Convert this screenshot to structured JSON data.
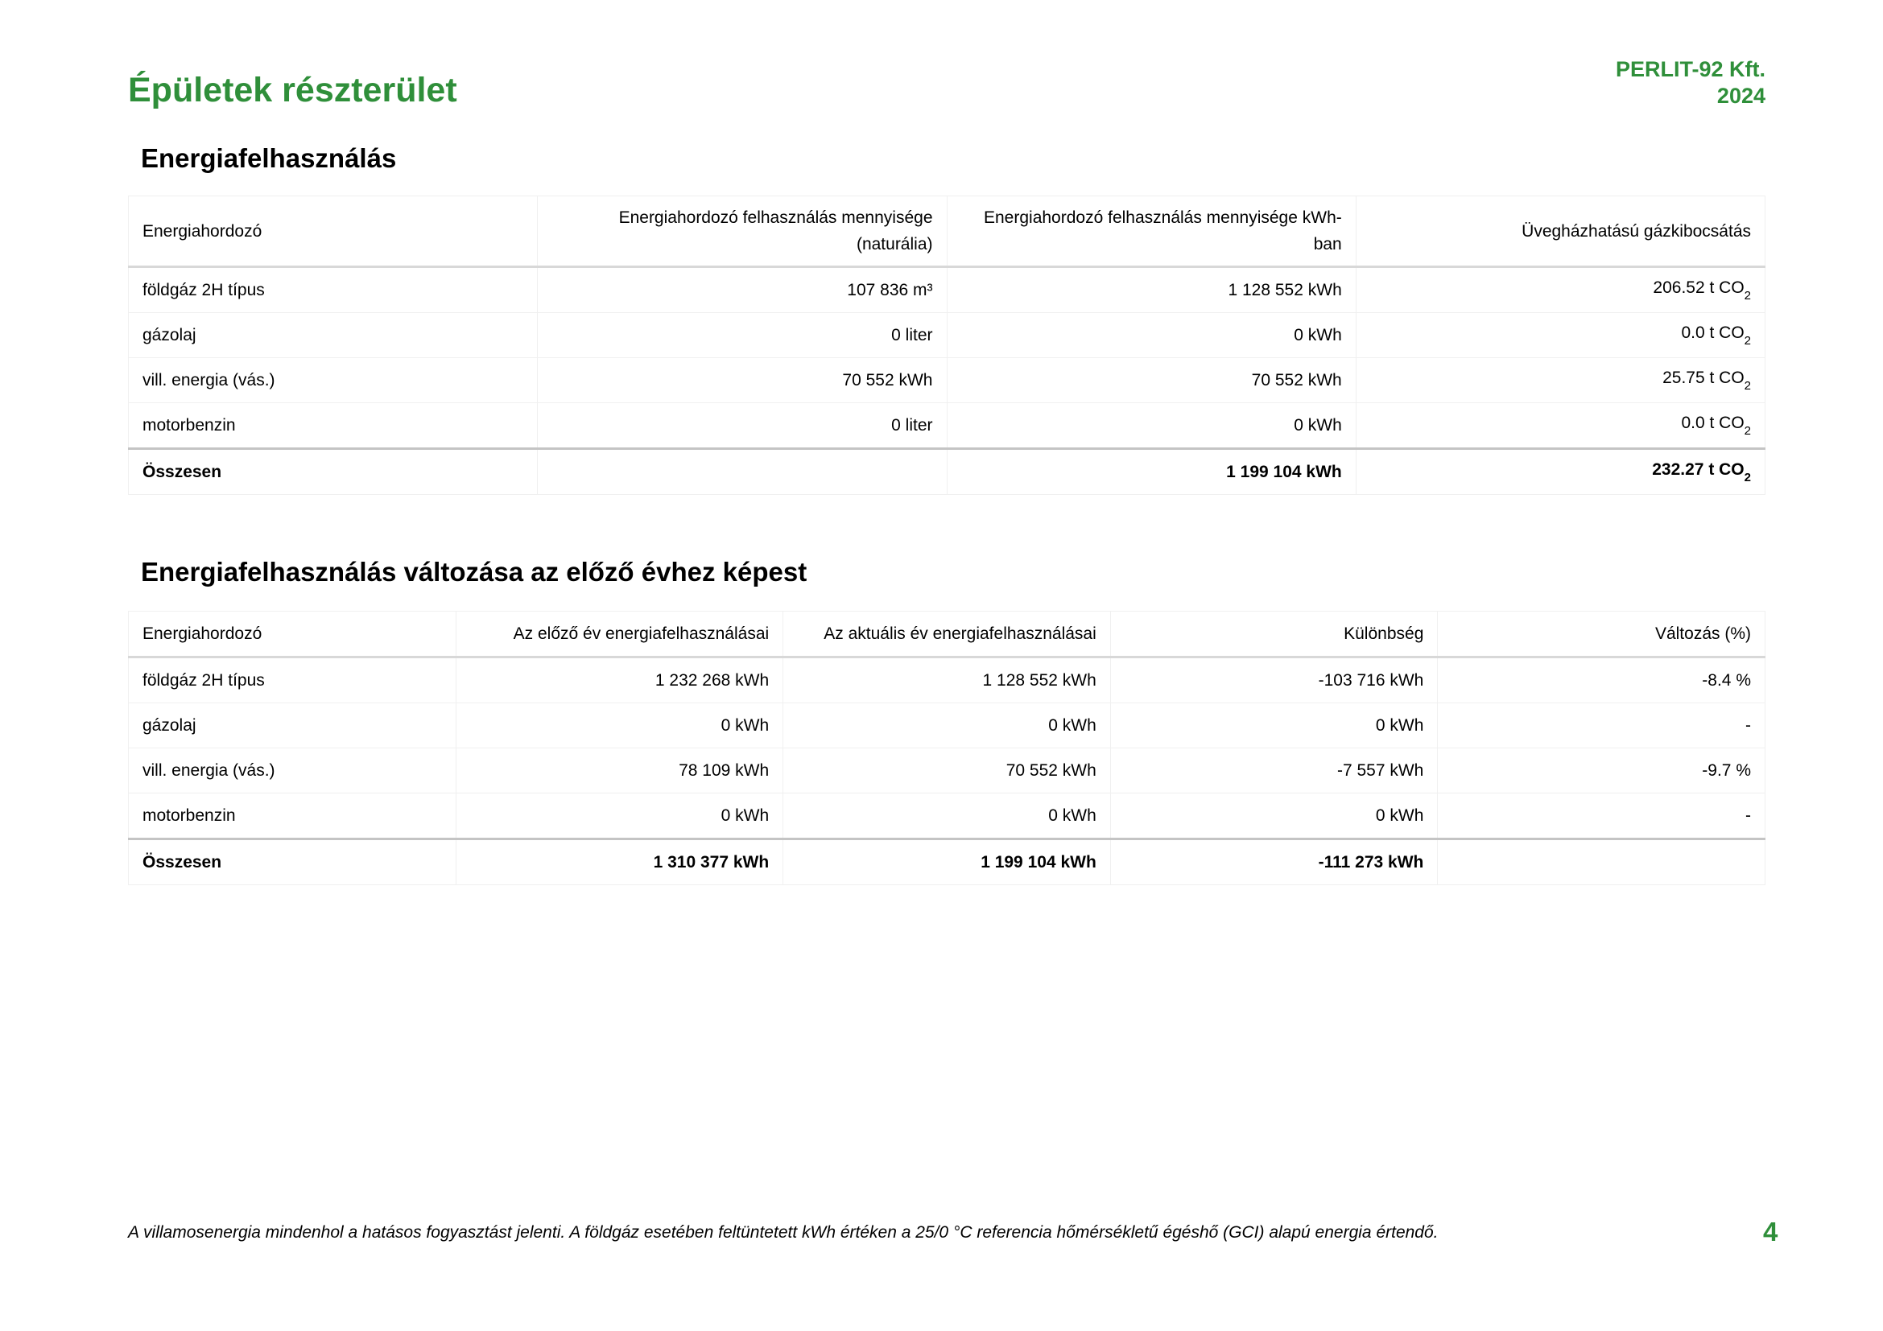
{
  "header": {
    "title": "Épületek részterület",
    "company": "PERLIT-92 Kft.",
    "year": "2024"
  },
  "colors": {
    "accent": "#2f8f3a"
  },
  "section1": {
    "heading": "Energiafelhasználás",
    "columns": [
      "Energiahordozó",
      "Energiahordozó felhasználás mennyisége (naturália)",
      "Energiahordozó felhasználás mennyisége kWh-ban",
      "Üvegházhatású gázkibocsátás"
    ],
    "rows": [
      {
        "name": "földgáz 2H típus",
        "natural": "107 836 m³",
        "kwh": "1 128 552 kWh",
        "ghg": "206.52 t CO",
        "sub": "2"
      },
      {
        "name": "gázolaj",
        "natural": "0 liter",
        "kwh": "0 kWh",
        "ghg": "0.0 t CO",
        "sub": "2"
      },
      {
        "name": "vill. energia (vás.)",
        "natural": "70 552 kWh",
        "kwh": "70 552 kWh",
        "ghg": "25.75 t CO",
        "sub": "2"
      },
      {
        "name": "motorbenzin",
        "natural": "0 liter",
        "kwh": "0 kWh",
        "ghg": "0.0 t CO",
        "sub": "2"
      }
    ],
    "total": {
      "name": "Összesen",
      "natural": "",
      "kwh": "1 199 104 kWh",
      "ghg": "232.27 t CO",
      "sub": "2"
    }
  },
  "section2": {
    "heading": "Energiafelhasználás változása az előző évhez képest",
    "columns": [
      "Energiahordozó",
      "Az előző év energiafelhasználásai",
      "Az aktuális év energiafelhasználásai",
      "Különbség",
      "Változás (%)"
    ],
    "rows": [
      {
        "name": "földgáz 2H típus",
        "prev": "1 232 268 kWh",
        "curr": "1 128 552 kWh",
        "diff": "-103 716 kWh",
        "pct": "-8.4 %"
      },
      {
        "name": "gázolaj",
        "prev": "0 kWh",
        "curr": "0 kWh",
        "diff": "0 kWh",
        "pct": "-"
      },
      {
        "name": "vill. energia (vás.)",
        "prev": "78 109 kWh",
        "curr": "70 552 kWh",
        "diff": "-7 557 kWh",
        "pct": "-9.7 %"
      },
      {
        "name": "motorbenzin",
        "prev": "0 kWh",
        "curr": "0 kWh",
        "diff": "0 kWh",
        "pct": "-"
      }
    ],
    "total": {
      "name": "Összesen",
      "prev": "1 310 377 kWh",
      "curr": "1 199 104 kWh",
      "diff": "-111 273 kWh",
      "pct": ""
    }
  },
  "footer": {
    "note": "A villamosenergia mindenhol a hatásos fogyasztást jelenti. A földgáz esetében feltüntetett kWh értéken a 25/0 °C referencia hőmérsékletű égéshő (GCI) alapú energia értendő.",
    "page": "4"
  }
}
